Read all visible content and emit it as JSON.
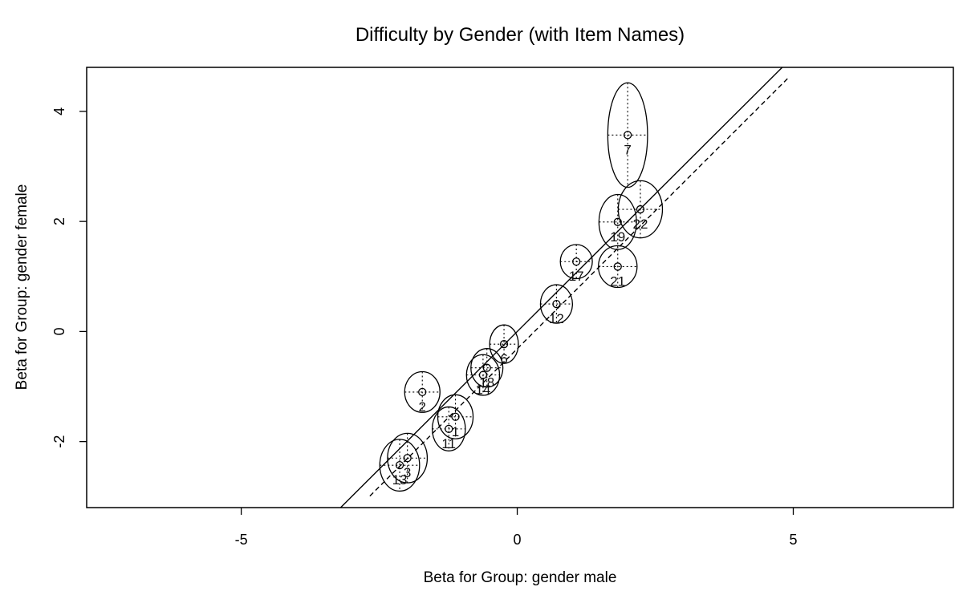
{
  "chart_data": {
    "type": "scatter",
    "title": "Difficulty by Gender (with Item Names)",
    "xlabel": "Beta for Group: gender male",
    "ylabel": "Beta for Group: gender female",
    "xlim": [
      -7.8,
      7.9
    ],
    "ylim": [
      -3.2,
      4.8
    ],
    "xticks": [
      -5,
      0,
      5
    ],
    "yticks": [
      -2,
      0,
      2,
      4
    ],
    "grid": false,
    "points": [
      {
        "label": "7",
        "x": 2.0,
        "y": 3.57,
        "ex": 0.36,
        "ey": 0.95
      },
      {
        "label": "22",
        "x": 2.23,
        "y": 2.22,
        "ex": 0.4,
        "ey": 0.52
      },
      {
        "label": "19",
        "x": 1.82,
        "y": 1.99,
        "ex": 0.34,
        "ey": 0.5
      },
      {
        "label": "17",
        "x": 1.07,
        "y": 1.27,
        "ex": 0.29,
        "ey": 0.31
      },
      {
        "label": "21",
        "x": 1.82,
        "y": 1.18,
        "ex": 0.35,
        "ey": 0.38
      },
      {
        "label": "12",
        "x": 0.71,
        "y": 0.5,
        "ex": 0.29,
        "ey": 0.35
      },
      {
        "label": "6",
        "x": -0.24,
        "y": -0.23,
        "ex": 0.26,
        "ey": 0.35
      },
      {
        "label": "18",
        "x": -0.55,
        "y": -0.66,
        "ex": 0.29,
        "ey": 0.35
      },
      {
        "label": "14",
        "x": -0.62,
        "y": -0.79,
        "ex": 0.3,
        "ey": 0.37
      },
      {
        "label": "2",
        "x": -1.72,
        "y": -1.1,
        "ex": 0.32,
        "ey": 0.37
      },
      {
        "label": "1",
        "x": -1.12,
        "y": -1.55,
        "ex": 0.32,
        "ey": 0.4
      },
      {
        "label": "11",
        "x": -1.24,
        "y": -1.77,
        "ex": 0.3,
        "ey": 0.4
      },
      {
        "label": "3",
        "x": -1.99,
        "y": -2.3,
        "ex": 0.36,
        "ey": 0.45
      },
      {
        "label": "13",
        "x": -2.13,
        "y": -2.43,
        "ex": 0.36,
        "ey": 0.47
      }
    ],
    "lines": [
      {
        "style": "solid",
        "from": [
          -3.2,
          -3.2
        ],
        "to": [
          4.8,
          4.8
        ]
      },
      {
        "style": "dashed",
        "from": [
          -2.67,
          -2.99
        ],
        "to": [
          4.9,
          4.6
        ]
      }
    ]
  }
}
